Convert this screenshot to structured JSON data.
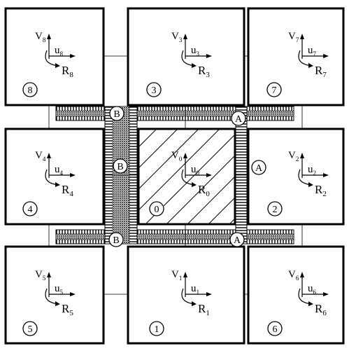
{
  "blocks": [
    {
      "id": "8",
      "v": "V",
      "vsub": "8",
      "u": "u",
      "usub": "8",
      "r": "R",
      "rsub": "8"
    },
    {
      "id": "3",
      "v": "V",
      "vsub": "3",
      "u": "u",
      "usub": "3",
      "r": "R",
      "rsub": "3"
    },
    {
      "id": "7",
      "v": "V",
      "vsub": "7",
      "u": "u",
      "usub": "7",
      "r": "R",
      "rsub": "7"
    },
    {
      "id": "4",
      "v": "V",
      "vsub": "4",
      "u": "u",
      "usub": "4",
      "r": "R",
      "rsub": "4"
    },
    {
      "id": "0",
      "v": "V",
      "vsub": "0",
      "u": "u",
      "usub": "0",
      "r": "R",
      "rsub": "0"
    },
    {
      "id": "2",
      "v": "V",
      "vsub": "2",
      "u": "u",
      "usub": "2",
      "r": "R",
      "rsub": "2"
    },
    {
      "id": "5",
      "v": "V",
      "vsub": "5",
      "u": "u",
      "usub": "5",
      "r": "R",
      "rsub": "5"
    },
    {
      "id": "1",
      "v": "V",
      "vsub": "1",
      "u": "u",
      "usub": "1",
      "r": "R",
      "rsub": "1"
    },
    {
      "id": "6",
      "v": "V",
      "vsub": "6",
      "u": "u",
      "usub": "6",
      "r": "R",
      "rsub": "6"
    }
  ],
  "joints": [
    {
      "label": "B"
    },
    {
      "label": "A"
    },
    {
      "label": "B"
    },
    {
      "label": "A"
    },
    {
      "label": "B"
    },
    {
      "label": "A"
    }
  ]
}
